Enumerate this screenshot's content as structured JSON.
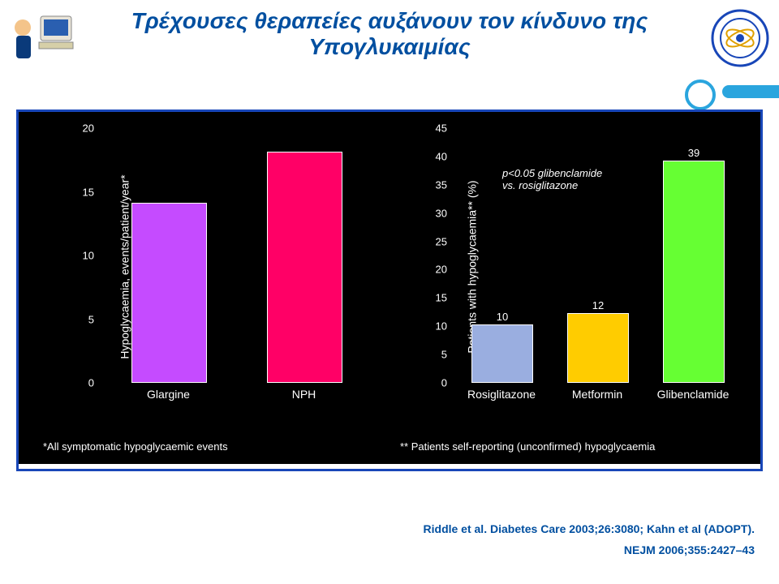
{
  "title": {
    "line1": "Τρέχουσες θεραπείες αυξάνουν τον κίνδυνο της",
    "line2": "Υπογλυκαιμίας",
    "color": "#004fa0",
    "fontsize": 28
  },
  "panel_bg": "#000000",
  "panel_border": "#1846b8",
  "left_chart": {
    "type": "bar",
    "ylabel": "Hypoglycaemia, events/patient/year*",
    "ylim": [
      0,
      20
    ],
    "yticks": [
      0,
      5,
      10,
      15,
      20
    ],
    "categories": [
      "Glargine",
      "NPH"
    ],
    "values": [
      14,
      18
    ],
    "bar_colors": [
      "#c54bff",
      "#ff0066"
    ],
    "bar_border": "#ffffff",
    "bar_width": 0.55,
    "show_value_labels": false,
    "footnote": "*All symptomatic hypoglycaemic events"
  },
  "right_chart": {
    "type": "bar",
    "ylabel": "Patients with hypoglycaemia** (%)",
    "ylim": [
      0,
      45
    ],
    "yticks": [
      0,
      5,
      10,
      15,
      20,
      25,
      30,
      35,
      40,
      45
    ],
    "categories": [
      "Rosiglitazone",
      "Metformin",
      "Glibenclamide"
    ],
    "values": [
      10,
      12,
      39
    ],
    "bar_colors": [
      "#9aaee0",
      "#ffcc00",
      "#66ff33"
    ],
    "bar_border": "#ffffff",
    "bar_width": 0.62,
    "show_value_labels": true,
    "annotation": "p<0.05 glibenclamide\nvs. rosiglitazone",
    "footnote": "** Patients self-reporting (unconfirmed) hypoglycaemia"
  },
  "citations": {
    "line1": "Riddle et al. Diabetes Care 2003;26:3080; Kahn et al (ADOPT).",
    "line2": "NEJM 2006;355:2427–43"
  }
}
